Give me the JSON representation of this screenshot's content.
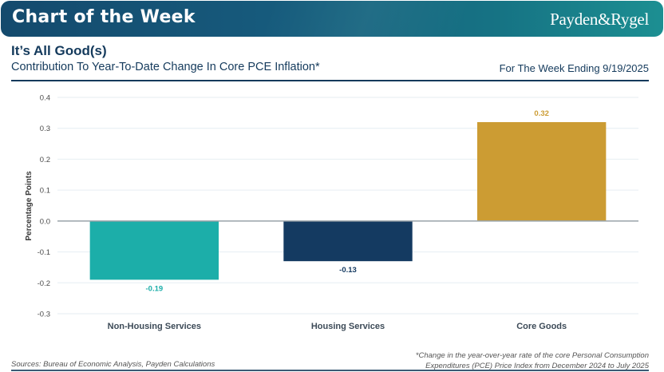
{
  "banner": {
    "title": "Chart of the Week",
    "brand": "Payden&Rygel"
  },
  "header": {
    "headline": "It’s All Good(s)",
    "subtitle": "Contribution To Year-To-Date Change In Core PCE Inflation*",
    "week_ending": "For The Week Ending 9/19/2025"
  },
  "footer": {
    "sources": "Sources: Bureau of Economic Analysis, Payden Calculations",
    "footnote_line1": "*Change in the year-over-year rate of the core Personal Consumption",
    "footnote_line2": "Expenditures (PCE) Price Index from December 2024 to July 2025"
  },
  "chart_data": {
    "type": "bar",
    "title": "Contribution To Year-To-Date Change In Core PCE Inflation*",
    "xlabel": "",
    "ylabel": "Percentage Points",
    "ylim": [
      -0.3,
      0.4
    ],
    "yticks": [
      0.4,
      0.3,
      0.2,
      0.1,
      0.0,
      -0.1,
      -0.2,
      -0.3
    ],
    "ytick_labels": [
      "0.4",
      "0.3",
      "0.2",
      "0.1",
      "0.0",
      "-0.1",
      "-0.2",
      "-0.3"
    ],
    "grid": true,
    "legend": "none",
    "categories": [
      "Non-Housing Services",
      "Housing Services",
      "Core Goods"
    ],
    "values": [
      -0.19,
      -0.13,
      0.32
    ],
    "data_labels": [
      "-0.19",
      "-0.13",
      "0.32"
    ],
    "colors": [
      "#1caea9",
      "#143a61",
      "#cc9c33"
    ]
  }
}
